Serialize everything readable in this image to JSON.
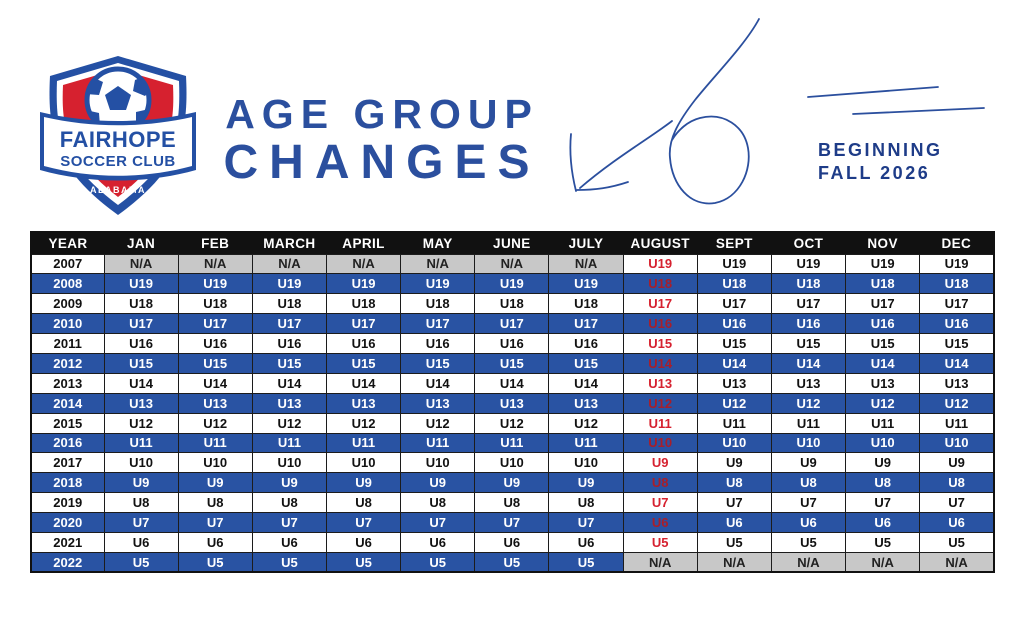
{
  "logo": {
    "name_line1": "FAIRHOPE",
    "name_line2": "SOCCER CLUB",
    "state": "ALABAMA"
  },
  "title": {
    "line1": "AGE GROUP",
    "line2": "CHANGES"
  },
  "subtitle": {
    "line1": "BEGINNING",
    "line2": "FALL 2026"
  },
  "colors": {
    "row_blue": "#2953a3",
    "logo_blue": "#2450a4",
    "logo_red": "#d6212f",
    "title_blue": "#2b4f9e",
    "subtitle_blue": "#1e3c88",
    "august_red": "#d6212f",
    "header_black": "#111111",
    "na_gray": "#c8c8c8"
  },
  "table": {
    "columns": [
      "YEAR",
      "JAN",
      "FEB",
      "MARCH",
      "APRIL",
      "MAY",
      "JUNE",
      "JULY",
      "AUGUST",
      "SEPT",
      "OCT",
      "NOV",
      "DEC"
    ],
    "rows": [
      {
        "year": "2007",
        "cells": [
          "N/A",
          "N/A",
          "N/A",
          "N/A",
          "N/A",
          "N/A",
          "N/A",
          "U19",
          "U19",
          "U19",
          "U19",
          "U19"
        ]
      },
      {
        "year": "2008",
        "cells": [
          "U19",
          "U19",
          "U19",
          "U19",
          "U19",
          "U19",
          "U19",
          "U18",
          "U18",
          "U18",
          "U18",
          "U18"
        ]
      },
      {
        "year": "2009",
        "cells": [
          "U18",
          "U18",
          "U18",
          "U18",
          "U18",
          "U18",
          "U18",
          "U17",
          "U17",
          "U17",
          "U17",
          "U17"
        ]
      },
      {
        "year": "2010",
        "cells": [
          "U17",
          "U17",
          "U17",
          "U17",
          "U17",
          "U17",
          "U17",
          "U16",
          "U16",
          "U16",
          "U16",
          "U16"
        ]
      },
      {
        "year": "2011",
        "cells": [
          "U16",
          "U16",
          "U16",
          "U16",
          "U16",
          "U16",
          "U16",
          "U15",
          "U15",
          "U15",
          "U15",
          "U15"
        ]
      },
      {
        "year": "2012",
        "cells": [
          "U15",
          "U15",
          "U15",
          "U15",
          "U15",
          "U15",
          "U15",
          "U14",
          "U14",
          "U14",
          "U14",
          "U14"
        ]
      },
      {
        "year": "2013",
        "cells": [
          "U14",
          "U14",
          "U14",
          "U14",
          "U14",
          "U14",
          "U14",
          "U13",
          "U13",
          "U13",
          "U13",
          "U13"
        ]
      },
      {
        "year": "2014",
        "cells": [
          "U13",
          "U13",
          "U13",
          "U13",
          "U13",
          "U13",
          "U13",
          "U12",
          "U12",
          "U12",
          "U12",
          "U12"
        ]
      },
      {
        "year": "2015",
        "cells": [
          "U12",
          "U12",
          "U12",
          "U12",
          "U12",
          "U12",
          "U12",
          "U11",
          "U11",
          "U11",
          "U11",
          "U11"
        ]
      },
      {
        "year": "2016",
        "cells": [
          "U11",
          "U11",
          "U11",
          "U11",
          "U11",
          "U11",
          "U11",
          "U10",
          "U10",
          "U10",
          "U10",
          "U10"
        ]
      },
      {
        "year": "2017",
        "cells": [
          "U10",
          "U10",
          "U10",
          "U10",
          "U10",
          "U10",
          "U10",
          "U9",
          "U9",
          "U9",
          "U9",
          "U9"
        ]
      },
      {
        "year": "2018",
        "cells": [
          "U9",
          "U9",
          "U9",
          "U9",
          "U9",
          "U9",
          "U9",
          "U8",
          "U8",
          "U8",
          "U8",
          "U8"
        ]
      },
      {
        "year": "2019",
        "cells": [
          "U8",
          "U8",
          "U8",
          "U8",
          "U8",
          "U8",
          "U8",
          "U7",
          "U7",
          "U7",
          "U7",
          "U7"
        ]
      },
      {
        "year": "2020",
        "cells": [
          "U7",
          "U7",
          "U7",
          "U7",
          "U7",
          "U7",
          "U7",
          "U6",
          "U6",
          "U6",
          "U6",
          "U6"
        ]
      },
      {
        "year": "2021",
        "cells": [
          "U6",
          "U6",
          "U6",
          "U6",
          "U6",
          "U6",
          "U6",
          "U5",
          "U5",
          "U5",
          "U5",
          "U5"
        ]
      },
      {
        "year": "2022",
        "cells": [
          "U5",
          "U5",
          "U5",
          "U5",
          "U5",
          "U5",
          "U5",
          "N/A",
          "N/A",
          "N/A",
          "N/A",
          "N/A"
        ]
      }
    ]
  }
}
